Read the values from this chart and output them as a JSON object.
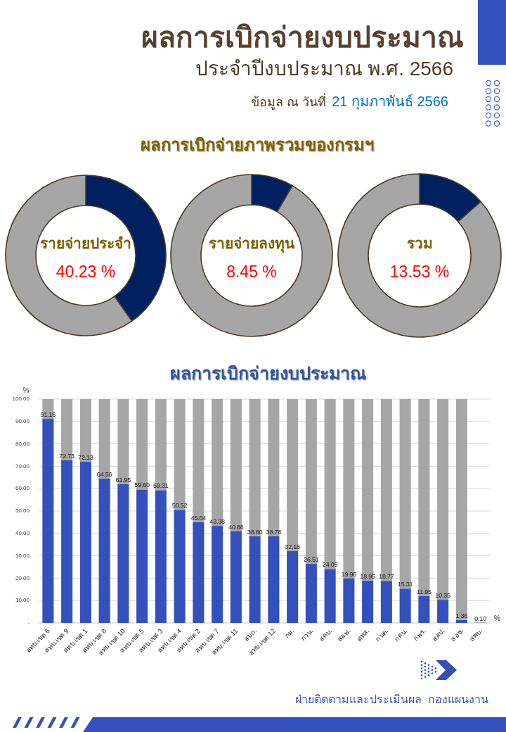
{
  "chart_data": [
    {
      "type": "other",
      "title": "ผลการเบิกจ่ายงบประมาณ",
      "subtitle": "ประจำปีงบประมาณ พ.ศ. 2566",
      "annotations": [
        "ข้อมูล ณ วันที่",
        "21 กุมภาพันธ์ 2566",
        "ผลการเบิกจ่ายภาพรวมของกรมฯ"
      ]
    },
    {
      "type": "donut",
      "title": "รายจ่ายประจำ",
      "categories": [
        null,
        null
      ],
      "values": [
        40.23,
        59.77
      ],
      "colors": [
        "#002060",
        "#a6a6a6"
      ],
      "annotations": [
        "40.23 %"
      ]
    },
    {
      "type": "donut",
      "title": "รายจ่ายลงทุน",
      "categories": [
        null,
        null
      ],
      "values": [
        8.45,
        91.55
      ],
      "colors": [
        "#002060",
        "#a6a6a6"
      ],
      "annotations": [
        "8.45 %"
      ]
    },
    {
      "type": "donut",
      "title": "รวม",
      "categories": [
        null,
        null
      ],
      "values": [
        13.53,
        86.47
      ],
      "colors": [
        "#002060",
        "#a6a6a6"
      ],
      "annotations": [
        "13.53 %"
      ]
    },
    {
      "type": "bar",
      "title": "ผลการเบิกจ่ายงบประมาณ",
      "ylabel": "%",
      "stacked": true,
      "grid": "y",
      "categories": [
        "สทบ.เขต 6",
        "สทบ.เขต 9",
        "สทบ.เขต 1",
        "สทบ.เขต 8",
        "สทบ.เขต 10",
        "สทบ.เขต 5",
        "สทบ.เขต 3",
        "สทบ.เขต 4",
        "สทบ.เขต 2",
        "สทบ.เขต 7",
        "สทบ.เขต 11",
        "สบก.",
        "สทบ.เขต 12",
        "กผ.",
        "กวน.",
        "สคบ.",
        "สอฟ.",
        "ศทส.",
        "กนต.",
        "กตน.",
        "กพร.",
        "สสป.",
        "สอช.",
        "สพบ."
      ],
      "series": [
        {
          "color": "#3450bc",
          "values": [
            91.16,
            72.73,
            72.13,
            64.56,
            61.95,
            59.6,
            59.31,
            50.52,
            45.04,
            43.38,
            40.88,
            38.8,
            38.78,
            32.18,
            26.51,
            24.09,
            19.96,
            18.95,
            18.77,
            15.31,
            11.95,
            10.35,
            1.36,
            0.1
          ],
          "value_labels": [
            "91.16",
            "72.73",
            "72.13",
            "64.56",
            "61.95",
            "59.60",
            "59.31",
            "50.52",
            "45.04",
            "43.38",
            "40.88",
            "38.80",
            "38.78",
            "32.18",
            "26.51",
            "24.09",
            "19.96",
            "18.95",
            "18.77",
            "15.31",
            "11.95",
            "10.35",
            "1.36",
            "0.10"
          ]
        },
        {
          "color": "#a6a6a6",
          "values": [
            8.84,
            27.27,
            27.87,
            35.44,
            38.05,
            40.4,
            40.69,
            49.48,
            54.96,
            56.62,
            59.12,
            61.2,
            61.22,
            67.82,
            73.49,
            75.91,
            80.04,
            81.05,
            81.23,
            84.69,
            88.05,
            89.65,
            98.64,
            null
          ]
        }
      ],
      "ylim": [
        0,
        100
      ],
      "yticks": [
        {
          "value": 0,
          "label": "-"
        },
        {
          "value": 10,
          "label": "10.00"
        },
        {
          "value": 20,
          "label": "20.00"
        },
        {
          "value": 30,
          "label": "30.00"
        },
        {
          "value": 40,
          "label": "40.00"
        },
        {
          "value": 50,
          "label": "50.00"
        },
        {
          "value": 60,
          "label": "60.00"
        },
        {
          "value": 70,
          "label": "70.00"
        },
        {
          "value": 80,
          "label": "80.00"
        },
        {
          "value": 90,
          "label": "90.00"
        },
        {
          "value": 100,
          "label": "100.00"
        }
      ],
      "annotations": [
        "%",
        "ฝ่ายติดตามและประเมินผล  กองแผนงาน"
      ]
    }
  ]
}
